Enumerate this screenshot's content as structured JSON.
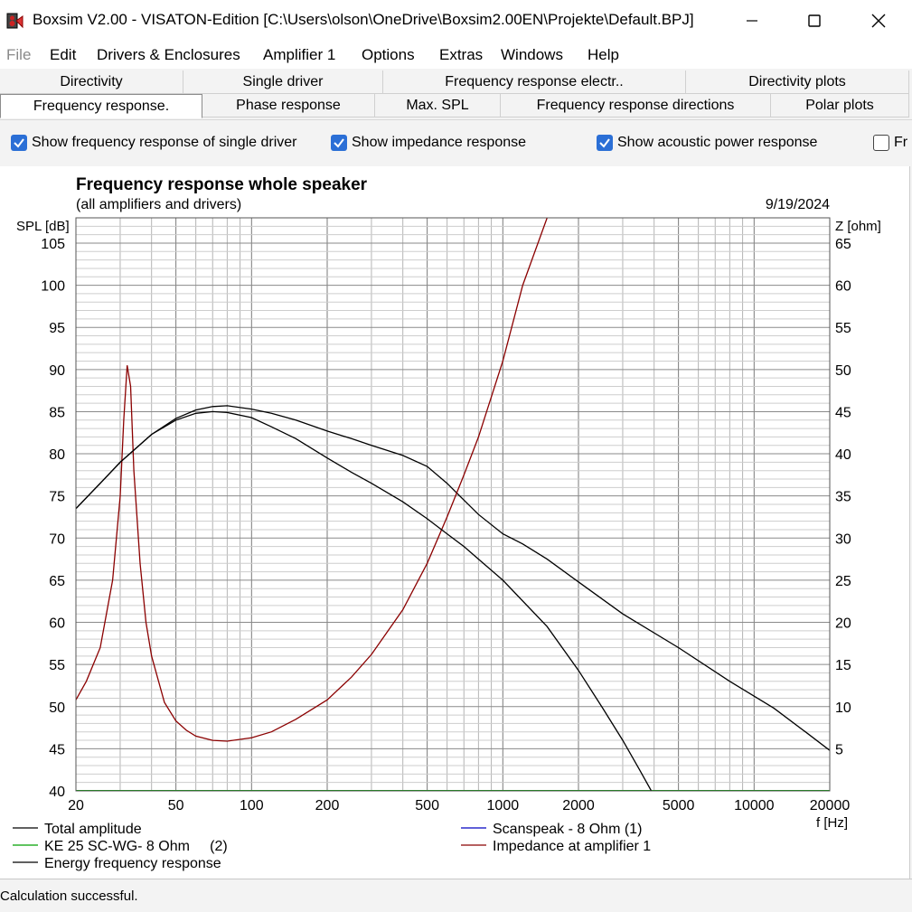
{
  "window": {
    "title": "Boxsim V2.00 - VISATON-Edition [C:\\Users\\olson\\OneDrive\\Boxsim2.00EN\\Projekte\\Default.BPJ]",
    "icon": "boxsim-app-icon"
  },
  "menu": [
    "File",
    "Edit",
    "Drivers & Enclosures",
    "Amplifier 1",
    "Options",
    "Extras",
    "Windows",
    "Help"
  ],
  "tabs_row1": [
    "Directivity",
    "Single driver",
    "Frequency response electr..",
    "Directivity plots"
  ],
  "tabs_row2": [
    "Frequency response.",
    "Phase response",
    "Max. SPL",
    "Frequency response directions",
    "Polar plots"
  ],
  "active_tab": "Frequency response.",
  "options": [
    {
      "label": "Show frequency response of single driver",
      "checked": true
    },
    {
      "label": "Show impedance response",
      "checked": true
    },
    {
      "label": "Show acoustic power response",
      "checked": true
    },
    {
      "label": "Fr",
      "checked": false
    }
  ],
  "status": "Calculation successful.",
  "chart_data": {
    "type": "line",
    "title": "Frequency response whole speaker",
    "subtitle": "(all amplifiers and drivers)",
    "date": "9/19/2024",
    "ylabel": "SPL [dB]",
    "y2label": "Z [ohm]",
    "xlabel": "f [Hz]",
    "xscale": "log",
    "xlim": [
      20,
      20000
    ],
    "ylim": [
      40,
      108
    ],
    "y2lim": [
      0,
      68
    ],
    "xticks": [
      20,
      50,
      100,
      200,
      500,
      1000,
      2000,
      5000,
      10000,
      20000
    ],
    "xtick_labels": [
      "20",
      "50",
      "100",
      "200",
      "500",
      "1000",
      "2000",
      "5000",
      "10000",
      "20000"
    ],
    "yticks": [
      40,
      45,
      50,
      55,
      60,
      65,
      70,
      75,
      80,
      85,
      90,
      95,
      100,
      105
    ],
    "y2ticks": [
      5,
      10,
      15,
      20,
      25,
      30,
      35,
      40,
      45,
      50,
      55,
      60,
      65
    ],
    "grid": true,
    "legend_position": "bottom",
    "series": [
      {
        "name": "Total amplitude",
        "color": "#000000",
        "axis": "left",
        "x": [
          20,
          25,
          30,
          40,
          50,
          60,
          70,
          80,
          100,
          120,
          150,
          200,
          250,
          300,
          400,
          500,
          600,
          700,
          800,
          1000,
          1200,
          1500,
          2000,
          3000,
          5000,
          8000,
          12000,
          16000,
          20000
        ],
        "y": [
          73.5,
          76.5,
          79,
          82.3,
          84.2,
          85.2,
          85.6,
          85.7,
          85.3,
          84.8,
          84,
          82.7,
          81.8,
          81,
          79.8,
          78.5,
          76.5,
          74.5,
          72.8,
          70.5,
          69.3,
          67.5,
          64.8,
          61,
          57,
          53,
          49.8,
          47,
          44.8
        ]
      },
      {
        "name": "Scanspeak - 8 Ohm (1)",
        "color": "#0000c0",
        "axis": "left",
        "x": [],
        "y": []
      },
      {
        "name": "KE 25 SC-WG- 8 Ohm     (2)",
        "color": "#00a000",
        "axis": "left",
        "x": [
          20,
          20000
        ],
        "y": [
          40,
          40
        ]
      },
      {
        "name": "Impedance at amplifier 1",
        "color": "#8b0000",
        "axis": "right",
        "x": [
          20,
          22,
          25,
          28,
          30,
          31,
          32,
          33,
          34,
          36,
          38,
          40,
          45,
          50,
          55,
          60,
          70,
          80,
          100,
          120,
          150,
          200,
          250,
          300,
          400,
          500,
          600,
          700,
          800,
          1000,
          1200,
          1500
        ],
        "y": [
          10.8,
          13,
          17,
          25,
          35,
          44,
          50.5,
          48,
          38,
          27,
          20,
          16,
          10.5,
          8.3,
          7.2,
          6.5,
          6,
          5.9,
          6.3,
          7,
          8.5,
          10.8,
          13.5,
          16.2,
          21.5,
          27,
          32.5,
          37.5,
          42,
          51,
          60,
          68
        ]
      },
      {
        "name": "Energy frequency response",
        "color": "#000000",
        "axis": "left",
        "x": [
          20,
          25,
          30,
          40,
          50,
          60,
          70,
          80,
          100,
          120,
          150,
          200,
          250,
          300,
          400,
          500,
          600,
          700,
          800,
          1000,
          1500,
          2000,
          2500,
          3000,
          3500,
          3900
        ],
        "y": [
          73.5,
          76.5,
          79,
          82.3,
          84,
          84.8,
          85,
          84.9,
          84.3,
          83.2,
          81.8,
          79.5,
          77.8,
          76.5,
          74.3,
          72.3,
          70.5,
          69,
          67.5,
          65,
          59.5,
          54.3,
          49.8,
          46,
          42.5,
          40
        ]
      }
    ]
  }
}
